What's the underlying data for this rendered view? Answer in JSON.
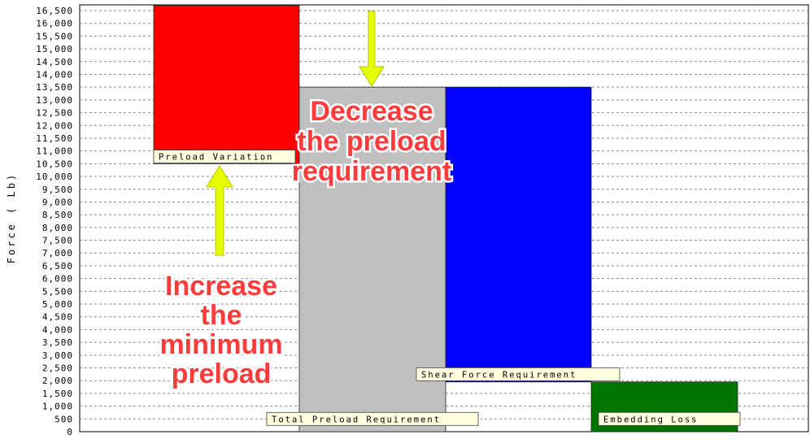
{
  "chart_data": {
    "type": "bar",
    "chart_style": "floating-waterfall",
    "ylabel": "Force ( Lb)",
    "ylim": [
      0,
      16500
    ],
    "ytick_step": 500,
    "grid": "horizontal-dashed",
    "bars": [
      {
        "name": "Preload Variation",
        "start": 10500,
        "end": 16700,
        "color": "#ff0000"
      },
      {
        "name": "Total Preload Requirement",
        "start": 0,
        "end": 13500,
        "color": "#c0c0c0"
      },
      {
        "name": "Shear Force Requirement",
        "start": 1950,
        "end": 13500,
        "color": "#0000ff"
      },
      {
        "name": "Embedding Loss",
        "start": 0,
        "end": 1950,
        "color": "#007400"
      }
    ],
    "annotations": [
      {
        "lines": [
          "Decrease",
          "the preload",
          "requirement"
        ],
        "color": "#ff3b3b"
      },
      {
        "lines": [
          "Increase",
          "the",
          "minimum",
          "preload"
        ],
        "color": "#ff3b3b"
      }
    ],
    "arrow_color": "#e6ff00"
  }
}
